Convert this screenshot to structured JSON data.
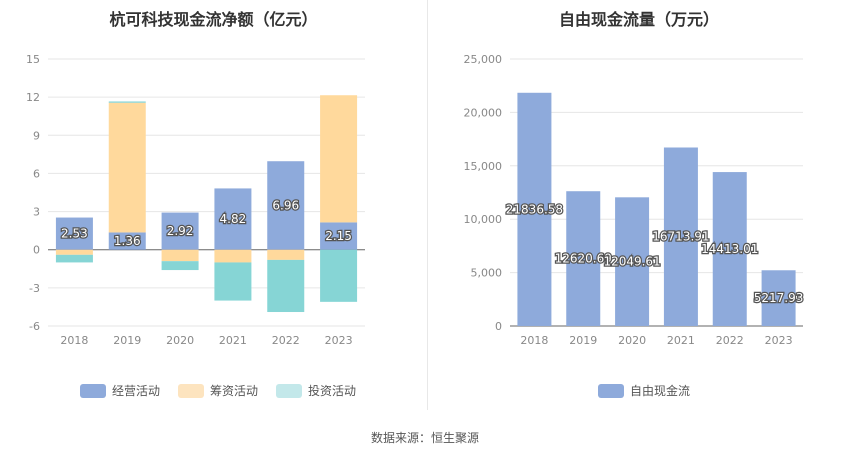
{
  "source": "数据来源：恒生聚源",
  "chart_data": [
    {
      "type": "bar",
      "stacked": true,
      "title": "杭可科技现金流净额（亿元）",
      "categories": [
        "2018",
        "2019",
        "2020",
        "2021",
        "2022",
        "2023"
      ],
      "ylim": [
        -6,
        15
      ],
      "yticks": [
        -6,
        -3,
        0,
        3,
        6,
        9,
        12,
        15
      ],
      "grid": true,
      "legend_position": "bottom",
      "series": [
        {
          "name": "经营活动",
          "color": "#8eaadb",
          "values": [
            2.53,
            1.36,
            2.92,
            4.82,
            6.96,
            2.15
          ],
          "labels": [
            "2.53",
            "1.36",
            "2.92",
            "4.82",
            "6.96",
            "2.15"
          ]
        },
        {
          "name": "筹资活动",
          "color": "#ffd99c",
          "values": [
            -0.4,
            10.2,
            -0.9,
            -1.0,
            -0.8,
            10.0
          ]
        },
        {
          "name": "投资活动",
          "color": "#86d5d5",
          "values": [
            -0.6,
            0.1,
            -0.7,
            -3.0,
            -4.1,
            -4.1
          ]
        }
      ],
      "legend_colors": {
        "经营活动": "#8eaadb",
        "筹资活动": "#fde4bf",
        "投资活动": "#c3e8ea"
      }
    },
    {
      "type": "bar",
      "title": "自由现金流量（万元）",
      "categories": [
        "2018",
        "2019",
        "2020",
        "2021",
        "2022",
        "2023"
      ],
      "ylim": [
        0,
        25000
      ],
      "yticks": [
        0,
        5000,
        10000,
        15000,
        20000,
        25000
      ],
      "ytick_labels": [
        "0",
        "5,000",
        "10,000",
        "15,000",
        "20,000",
        "25,000"
      ],
      "grid": true,
      "legend_position": "bottom",
      "series": [
        {
          "name": "自由现金流",
          "color": "#8eaadb",
          "values": [
            21836.58,
            12620.69,
            12049.61,
            16713.91,
            14413.01,
            5217.93
          ],
          "labels": [
            "21836.58",
            "12620.69",
            "12049.61",
            "16713.91",
            "14413.01",
            "5217.93"
          ]
        }
      ]
    }
  ]
}
